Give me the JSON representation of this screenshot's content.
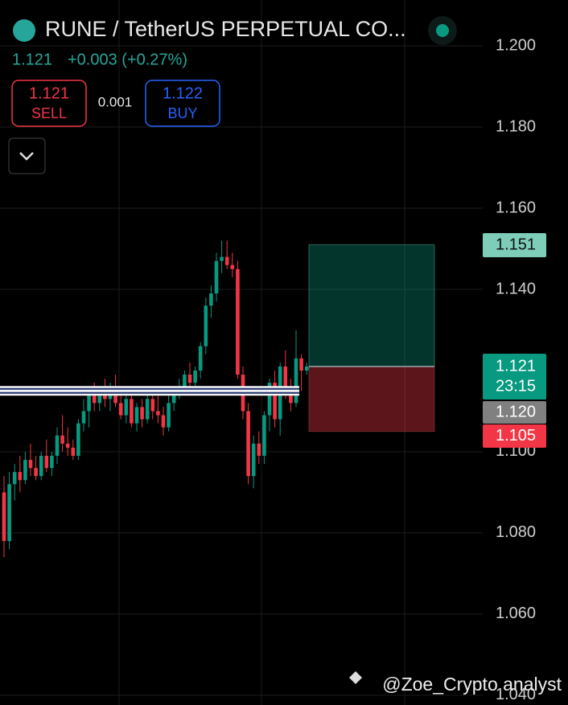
{
  "chart_data": {
    "type": "candlestick",
    "title": "RUNE / TetherUS PERPETUAL CO...",
    "last_price": "1.121",
    "change": "+0.003 (+0.27%)",
    "sell_price": "1.121",
    "sell_label": "SELL",
    "spread": "0.001",
    "buy_price": "1.122",
    "buy_label": "BUY",
    "up_color": "#089981",
    "down_color": "#f23645",
    "open": [
      1.09,
      1.078,
      1.092,
      1.095,
      1.093,
      1.098,
      1.096,
      1.094,
      1.099,
      1.096,
      1.099,
      1.104,
      1.102,
      1.101,
      1.099,
      1.107,
      1.11,
      1.114,
      1.112,
      1.115,
      1.113,
      1.116,
      1.112,
      1.109,
      1.113,
      1.107,
      1.111,
      1.108,
      1.113,
      1.11,
      1.109,
      1.106,
      1.112,
      1.114,
      1.116,
      1.119,
      1.117,
      1.12,
      1.126,
      1.136,
      1.139,
      1.147,
      1.148,
      1.146,
      1.145,
      1.119,
      1.11,
      1.094,
      1.102,
      1.099,
      1.109,
      1.117,
      1.108,
      1.121,
      1.116,
      1.112,
      1.123,
      1.12
    ],
    "high": [
      1.094,
      1.095,
      1.097,
      1.099,
      1.1,
      1.102,
      1.099,
      1.1,
      1.103,
      1.1,
      1.106,
      1.109,
      1.106,
      1.103,
      1.108,
      1.113,
      1.115,
      1.117,
      1.116,
      1.118,
      1.117,
      1.119,
      1.116,
      1.114,
      1.116,
      1.112,
      1.113,
      1.115,
      1.116,
      1.114,
      1.111,
      1.114,
      1.116,
      1.118,
      1.12,
      1.122,
      1.121,
      1.127,
      1.138,
      1.141,
      1.149,
      1.152,
      1.152,
      1.149,
      1.147,
      1.121,
      1.112,
      1.104,
      1.105,
      1.11,
      1.118,
      1.12,
      1.122,
      1.125,
      1.118,
      1.13,
      1.124,
      1.122
    ],
    "low": [
      1.074,
      1.076,
      1.088,
      1.09,
      1.092,
      1.094,
      1.093,
      1.093,
      1.095,
      1.094,
      1.097,
      1.1,
      1.099,
      1.098,
      1.098,
      1.105,
      1.106,
      1.11,
      1.11,
      1.111,
      1.11,
      1.111,
      1.108,
      1.107,
      1.106,
      1.105,
      1.106,
      1.107,
      1.108,
      1.107,
      1.104,
      1.105,
      1.11,
      1.113,
      1.114,
      1.116,
      1.115,
      1.118,
      1.124,
      1.133,
      1.137,
      1.144,
      1.145,
      1.143,
      1.118,
      1.108,
      1.092,
      1.091,
      1.097,
      1.097,
      1.105,
      1.106,
      1.104,
      1.113,
      1.11,
      1.111,
      1.115,
      1.119
    ],
    "close": [
      1.078,
      1.092,
      1.095,
      1.093,
      1.098,
      1.096,
      1.094,
      1.099,
      1.096,
      1.099,
      1.104,
      1.102,
      1.101,
      1.099,
      1.107,
      1.11,
      1.114,
      1.112,
      1.115,
      1.113,
      1.116,
      1.112,
      1.109,
      1.113,
      1.107,
      1.111,
      1.108,
      1.113,
      1.11,
      1.109,
      1.106,
      1.112,
      1.114,
      1.116,
      1.119,
      1.117,
      1.12,
      1.126,
      1.136,
      1.139,
      1.147,
      1.148,
      1.146,
      1.145,
      1.119,
      1.11,
      1.094,
      1.102,
      1.099,
      1.109,
      1.117,
      1.108,
      1.121,
      1.116,
      1.112,
      1.123,
      1.12,
      1.121
    ],
    "ylim": [
      1.0376,
      1.2113
    ],
    "yticks": [
      {
        "value": 1.2,
        "label": "1.200"
      },
      {
        "value": 1.18,
        "label": "1.180"
      },
      {
        "value": 1.16,
        "label": "1.160"
      },
      {
        "value": 1.14,
        "label": "1.140"
      },
      {
        "value": 1.1,
        "label": "1.100"
      },
      {
        "value": 1.08,
        "label": "1.080"
      },
      {
        "value": 1.06,
        "label": "1.060"
      },
      {
        "value": 1.04,
        "label": "1.040"
      }
    ],
    "level_line": 1.115,
    "position": {
      "entry": 1.121,
      "target": 1.151,
      "stop": 1.105
    },
    "price_labels": [
      {
        "value": 1.151,
        "label": "1.151",
        "color": "#7ecdb8"
      },
      {
        "value": 1.121,
        "label": "1.121",
        "color": "#089981"
      },
      {
        "value": 1.12,
        "label": "1.120",
        "color": "#808080"
      },
      {
        "value": 1.105,
        "label": "1.105",
        "color": "#f23645"
      }
    ],
    "countdown": "23:15",
    "watermark": "@Zoe_Crypto analyst"
  }
}
